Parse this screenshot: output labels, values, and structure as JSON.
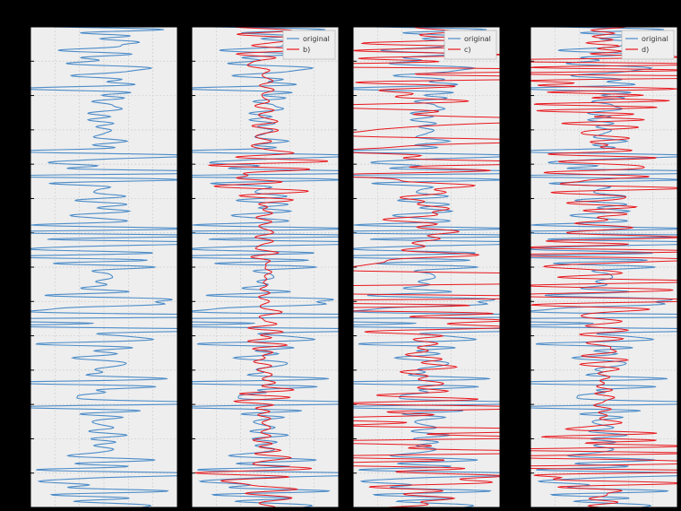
{
  "figure": {
    "background": "#000000",
    "panel_background": "#eeeeee",
    "grid_color": "#cfcfcf",
    "original_color": "#4c8cc8",
    "overlay_color": "#e8171d"
  },
  "chart_data": [
    {
      "type": "line",
      "panel": "1",
      "legend": null,
      "series": [
        {
          "id": "original",
          "name": "",
          "color": "#4c8cc8",
          "seed": 1,
          "base_amplitude": 0.22
        }
      ],
      "xlim": [
        -1,
        1
      ],
      "ylim": [
        0,
        1
      ],
      "grid": true
    },
    {
      "type": "line",
      "panel": "2",
      "legend": {
        "placement": "top-right"
      },
      "series": [
        {
          "id": "original",
          "name": "original",
          "color": "#4c8cc8",
          "seed": 1,
          "base_amplitude": 0.22
        },
        {
          "id": "b",
          "name": "b)",
          "color": "#e8171d",
          "seed": 2,
          "base_amplitude": 0.06
        }
      ],
      "xlim": [
        -1,
        1
      ],
      "ylim": [
        0,
        1
      ],
      "grid": true
    },
    {
      "type": "line",
      "panel": "3",
      "legend": {
        "placement": "top-right"
      },
      "series": [
        {
          "id": "original",
          "name": "original",
          "color": "#4c8cc8",
          "seed": 1,
          "base_amplitude": 0.22
        },
        {
          "id": "c",
          "name": "c)",
          "color": "#e8171d",
          "seed": 3,
          "base_amplitude": 0.3
        }
      ],
      "xlim": [
        -1,
        1
      ],
      "ylim": [
        0,
        1
      ],
      "grid": true
    },
    {
      "type": "line",
      "panel": "4",
      "legend": {
        "placement": "top-right"
      },
      "series": [
        {
          "id": "original",
          "name": "original",
          "color": "#4c8cc8",
          "seed": 1,
          "base_amplitude": 0.22
        },
        {
          "id": "d",
          "name": "d)",
          "color": "#e8171d",
          "seed": 4,
          "base_amplitude": 0.18
        }
      ],
      "xlim": [
        -1,
        1
      ],
      "ylim": [
        0,
        1
      ],
      "grid": true
    }
  ]
}
